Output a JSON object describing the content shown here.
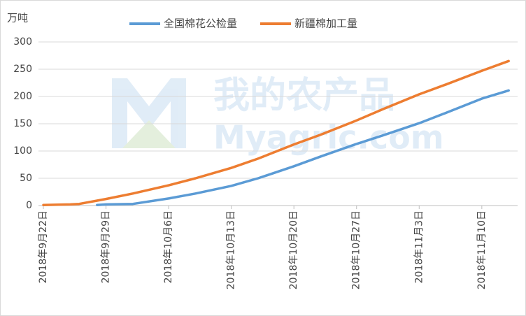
{
  "chart_data": {
    "type": "line",
    "y_unit": "万吨",
    "annotations": [
      "我的农产品",
      "Myagric.com"
    ],
    "x": [
      "2018-09-22",
      "2018-09-25",
      "2018-09-26",
      "2018-09-27",
      "2018-09-28",
      "2018-09-29",
      "2018-10-02",
      "2018-10-06",
      "2018-10-09",
      "2018-10-13",
      "2018-10-16",
      "2018-10-20",
      "2018-10-23",
      "2018-10-27",
      "2018-10-30",
      "2018-11-03",
      "2018-11-06",
      "2018-11-10",
      "2018-11-13"
    ],
    "series": [
      {
        "name": "全国棉花公检量",
        "color": "#5b9bd5",
        "values": [
          null,
          null,
          null,
          null,
          1,
          2,
          3,
          13,
          22,
          36,
          50,
          72,
          90,
          113,
          129,
          151,
          170,
          196,
          211
        ]
      },
      {
        "name": "新疆棉加工量",
        "color": "#ed7d31",
        "values": [
          1,
          2,
          3,
          6,
          9,
          12,
          22,
          37,
          50,
          69,
          86,
          112,
          130,
          156,
          177,
          204,
          222,
          247,
          265
        ]
      }
    ],
    "xlim": [
      "2018-09-22",
      "2018-11-14"
    ],
    "xticks": [
      {
        "value": "2018-09-22",
        "label": "2018年9月22日"
      },
      {
        "value": "2018-09-29",
        "label": "2018年9月29日"
      },
      {
        "value": "2018-10-06",
        "label": "2018年10月6日"
      },
      {
        "value": "2018-10-13",
        "label": "2018年10月13日"
      },
      {
        "value": "2018-10-20",
        "label": "2018年10月20日"
      },
      {
        "value": "2018-10-27",
        "label": "2018年10月27日"
      },
      {
        "value": "2018-11-03",
        "label": "2018年11月3日"
      },
      {
        "value": "2018-11-10",
        "label": "2018年11月10日"
      }
    ],
    "ylim": [
      0,
      300
    ],
    "yticks": [
      0,
      50,
      100,
      150,
      200,
      250,
      300
    ],
    "grid": true,
    "legend": "top"
  }
}
